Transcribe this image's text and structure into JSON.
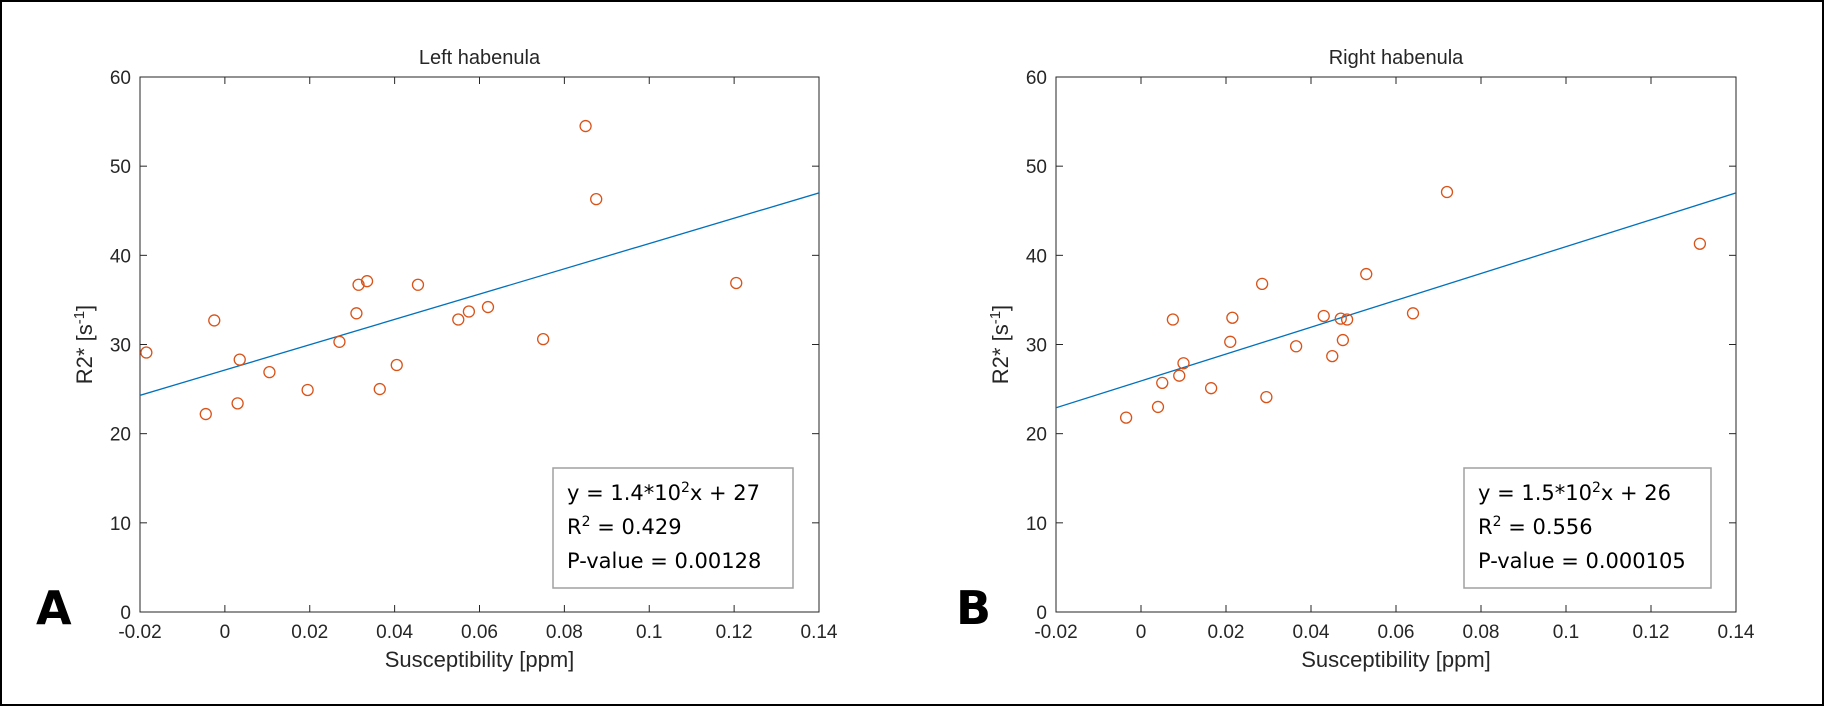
{
  "colors": {
    "marker": "#D95319",
    "fit_line": "#0072BD",
    "axis": "#262626",
    "legend_border": "#A0A0A0"
  },
  "chart_data": [
    {
      "type": "scatter",
      "panel_label": "A",
      "title": "Left habenula",
      "xlabel": "Susceptibility [ppm]",
      "ylabel": {
        "main": "R2* [s",
        "sup": "-1",
        "close": "]"
      },
      "xlim": [
        -0.02,
        0.14
      ],
      "ylim": [
        0,
        60
      ],
      "xticks": [
        -0.02,
        0,
        0.02,
        0.04,
        0.06,
        0.08,
        0.1,
        0.12,
        0.14
      ],
      "xtick_labels": [
        "-0.02",
        "0",
        "0.02",
        "0.04",
        "0.06",
        "0.08",
        "0.1",
        "0.12",
        "0.14"
      ],
      "yticks": [
        0,
        10,
        20,
        30,
        40,
        50,
        60
      ],
      "ytick_labels": [
        "0",
        "10",
        "20",
        "30",
        "40",
        "50",
        "60"
      ],
      "points": [
        {
          "x": -0.0185,
          "y": 29.1
        },
        {
          "x": -0.0045,
          "y": 22.2
        },
        {
          "x": -0.0025,
          "y": 32.7
        },
        {
          "x": 0.003,
          "y": 23.4
        },
        {
          "x": 0.0035,
          "y": 28.3
        },
        {
          "x": 0.0105,
          "y": 26.9
        },
        {
          "x": 0.0195,
          "y": 24.9
        },
        {
          "x": 0.027,
          "y": 30.3
        },
        {
          "x": 0.031,
          "y": 33.5
        },
        {
          "x": 0.0315,
          "y": 36.7
        },
        {
          "x": 0.0335,
          "y": 37.1
        },
        {
          "x": 0.0365,
          "y": 25.0
        },
        {
          "x": 0.0405,
          "y": 27.7
        },
        {
          "x": 0.0455,
          "y": 36.7
        },
        {
          "x": 0.055,
          "y": 32.8
        },
        {
          "x": 0.0575,
          "y": 33.7
        },
        {
          "x": 0.062,
          "y": 34.2
        },
        {
          "x": 0.075,
          "y": 30.6
        },
        {
          "x": 0.085,
          "y": 54.5
        },
        {
          "x": 0.0875,
          "y": 46.3
        },
        {
          "x": 0.1205,
          "y": 36.9
        }
      ],
      "fit": {
        "x": [
          -0.02,
          0.14
        ],
        "y": [
          24.3,
          47.0
        ]
      },
      "legend": {
        "equation": {
          "prefix": "y = 1.4*10",
          "sup": "2",
          "suffix": "x + 27"
        },
        "r2": {
          "prefix": "R",
          "sup": "2",
          "suffix": " = 0.429"
        },
        "pvalue": "P-value = 0.00128"
      }
    },
    {
      "type": "scatter",
      "panel_label": "B",
      "title": "Right habenula",
      "xlabel": "Susceptibility [ppm]",
      "ylabel": {
        "main": "R2* [s",
        "sup": "-1",
        "close": "]"
      },
      "xlim": [
        -0.02,
        0.14
      ],
      "ylim": [
        0,
        60
      ],
      "xticks": [
        -0.02,
        0,
        0.02,
        0.04,
        0.06,
        0.08,
        0.1,
        0.12,
        0.14
      ],
      "xtick_labels": [
        "-0.02",
        "0",
        "0.02",
        "0.04",
        "0.06",
        "0.08",
        "0.1",
        "0.12",
        "0.14"
      ],
      "yticks": [
        0,
        10,
        20,
        30,
        40,
        50,
        60
      ],
      "ytick_labels": [
        "0",
        "10",
        "20",
        "30",
        "40",
        "50",
        "60"
      ],
      "points": [
        {
          "x": -0.0035,
          "y": 21.8
        },
        {
          "x": 0.004,
          "y": 23.0
        },
        {
          "x": 0.005,
          "y": 25.7
        },
        {
          "x": 0.0075,
          "y": 32.8
        },
        {
          "x": 0.009,
          "y": 26.5
        },
        {
          "x": 0.01,
          "y": 27.9
        },
        {
          "x": 0.0165,
          "y": 25.1
        },
        {
          "x": 0.021,
          "y": 30.3
        },
        {
          "x": 0.0215,
          "y": 33.0
        },
        {
          "x": 0.0285,
          "y": 36.8
        },
        {
          "x": 0.0295,
          "y": 24.1
        },
        {
          "x": 0.0365,
          "y": 29.8
        },
        {
          "x": 0.043,
          "y": 33.2
        },
        {
          "x": 0.045,
          "y": 28.7
        },
        {
          "x": 0.047,
          "y": 32.9
        },
        {
          "x": 0.0475,
          "y": 30.5
        },
        {
          "x": 0.0485,
          "y": 32.8
        },
        {
          "x": 0.053,
          "y": 37.9
        },
        {
          "x": 0.064,
          "y": 33.5
        },
        {
          "x": 0.072,
          "y": 47.1
        },
        {
          "x": 0.1315,
          "y": 41.3
        }
      ],
      "fit": {
        "x": [
          -0.02,
          0.14
        ],
        "y": [
          22.9,
          47.0
        ]
      },
      "legend": {
        "equation": {
          "prefix": "y = 1.5*10",
          "sup": "2",
          "suffix": "x + 26"
        },
        "r2": {
          "prefix": "R",
          "sup": "2",
          "suffix": " = 0.556"
        },
        "pvalue": "P-value = 0.000105"
      }
    }
  ]
}
